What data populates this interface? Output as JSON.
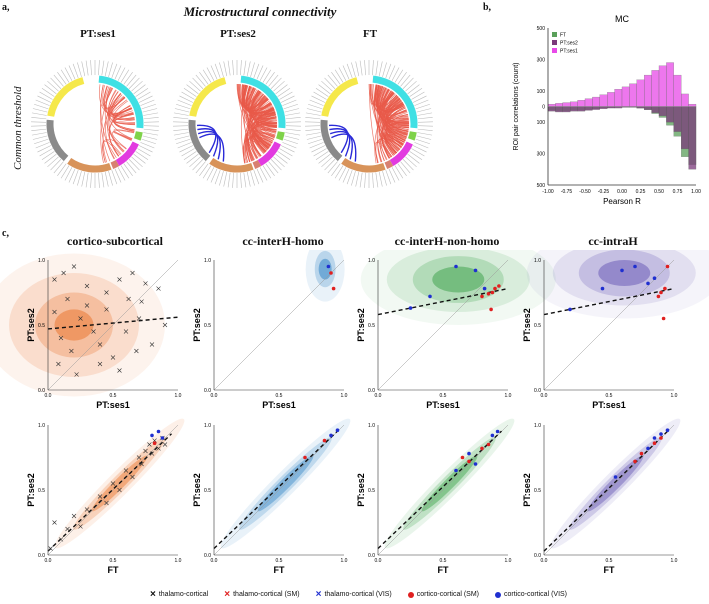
{
  "panel_labels": {
    "a": "a,",
    "b": "b,",
    "c": "c,"
  },
  "section_a": {
    "title": "Microstructural connectivity",
    "side_label": "Common threshold",
    "chords": [
      {
        "title": "PT:ses1",
        "blue_edges": 0,
        "red_edges": 45
      },
      {
        "title": "PT:ses2",
        "blue_edges": 4,
        "red_edges": 140
      },
      {
        "title": "FT",
        "blue_edges": 4,
        "red_edges": 130
      }
    ],
    "module_colors": [
      "#f5e84a",
      "#3fe0e4",
      "#7fd24a",
      "#e23ae0",
      "#d8935a",
      "#8a8a8a",
      "#d88070"
    ]
  },
  "section_c": {
    "row_titles": [
      "cortico-subcortical",
      "cc-interH-homo",
      "cc-interH-non-homo",
      "cc-intraH"
    ],
    "panel_colors": [
      "#e8681a",
      "#2a7fc4",
      "#2a9a3a",
      "#5a4ab0"
    ],
    "top_xlabel": "PT:ses1",
    "bottom_xlabel": "FT",
    "ylabel": "PT:ses2",
    "ticks": [
      "0.0",
      "0.5",
      "1.0"
    ]
  },
  "legend": {
    "items": [
      {
        "label": "thalamo-cortical",
        "marker": "x",
        "color": "#111111"
      },
      {
        "label": "thalamo-cortical (SM)",
        "marker": "x",
        "color": "#e02020"
      },
      {
        "label": "thalamo-cortical (VIS)",
        "marker": "x",
        "color": "#1f2fd0"
      },
      {
        "label": "cortico-cortical (SM)",
        "marker": "o",
        "color": "#e02020"
      },
      {
        "label": "cortico-cortical (VIS)",
        "marker": "o",
        "color": "#1f2fd0"
      }
    ]
  },
  "chart_data": [
    {
      "type": "bar",
      "title": "MC",
      "xlabel": "Pearson R",
      "ylabel": "ROI pair correlations (count)",
      "xlim": [
        -1.0,
        1.0
      ],
      "ylim": [
        -500,
        500
      ],
      "xticks": [
        "-1.00",
        "-0.75",
        "-0.50",
        "-0.25",
        "0.00",
        "0.25",
        "0.50",
        "0.75",
        "1.00"
      ],
      "yticks": [
        "500",
        "400",
        "300",
        "200",
        "100",
        "0",
        "100",
        "200",
        "300",
        "400",
        "500"
      ],
      "legend": [
        "FT",
        "PT:ses2",
        "PT:ses1"
      ],
      "series_colors": {
        "FT": "#5aa05a",
        "PT:ses2": "#7a3a7a",
        "PT:ses1": "#e84ae8"
      },
      "bin_centers": [
        -0.95,
        -0.85,
        -0.75,
        -0.65,
        -0.55,
        -0.45,
        -0.35,
        -0.25,
        -0.15,
        -0.05,
        0.05,
        0.15,
        0.25,
        0.35,
        0.45,
        0.55,
        0.65,
        0.75,
        0.85,
        0.95
      ],
      "series": [
        {
          "name": "PT:ses1",
          "values": [
            15,
            20,
            25,
            30,
            40,
            50,
            60,
            75,
            90,
            110,
            125,
            145,
            170,
            200,
            230,
            260,
            280,
            200,
            80,
            15
          ]
        },
        {
          "name": "PT:ses2",
          "values": [
            -30,
            -35,
            -35,
            -30,
            -30,
            -25,
            -20,
            -15,
            -10,
            -10,
            -5,
            -5,
            -10,
            -20,
            -40,
            -60,
            -100,
            -160,
            -270,
            -400
          ]
        },
        {
          "name": "FT",
          "values": [
            -25,
            -30,
            -30,
            -25,
            -25,
            -20,
            -15,
            -10,
            -8,
            -6,
            -5,
            -5,
            -10,
            -20,
            -45,
            -70,
            -120,
            -190,
            -320,
            -370
          ]
        }
      ]
    },
    {
      "type": "scatter",
      "title": "cortico-subcortical (PT:ses1 vs PT:ses2)",
      "xlabel": "PT:ses1",
      "ylabel": "PT:ses2",
      "xlim": [
        0,
        1
      ],
      "ylim": [
        0,
        1
      ],
      "regression": {
        "intercept": 0.47,
        "slope": 0.09
      },
      "density_center": [
        0.2,
        0.5
      ],
      "points": [
        [
          0.05,
          0.85
        ],
        [
          0.12,
          0.9
        ],
        [
          0.2,
          0.95
        ],
        [
          0.3,
          0.8
        ],
        [
          0.45,
          0.75
        ],
        [
          0.55,
          0.85
        ],
        [
          0.65,
          0.9
        ],
        [
          0.75,
          0.82
        ],
        [
          0.85,
          0.78
        ],
        [
          0.05,
          0.6
        ],
        [
          0.1,
          0.4
        ],
        [
          0.18,
          0.3
        ],
        [
          0.25,
          0.55
        ],
        [
          0.35,
          0.45
        ],
        [
          0.4,
          0.35
        ],
        [
          0.5,
          0.25
        ],
        [
          0.6,
          0.45
        ],
        [
          0.7,
          0.55
        ],
        [
          0.8,
          0.35
        ],
        [
          0.9,
          0.5
        ],
        [
          0.15,
          0.7
        ],
        [
          0.3,
          0.65
        ],
        [
          0.45,
          0.62
        ],
        [
          0.62,
          0.7
        ],
        [
          0.72,
          0.68
        ],
        [
          0.55,
          0.15
        ],
        [
          0.4,
          0.2
        ],
        [
          0.08,
          0.2
        ],
        [
          0.22,
          0.12
        ],
        [
          0.68,
          0.3
        ]
      ]
    },
    {
      "type": "scatter",
      "title": "cc-interH-homo (PT:ses1 vs PT:ses2)",
      "xlabel": "PT:ses1",
      "ylabel": "PT:ses2",
      "xlim": [
        0,
        1
      ],
      "ylim": [
        0,
        1
      ],
      "density_center": [
        0.9,
        0.93
      ],
      "points_sm": [
        [
          0.9,
          0.9
        ],
        [
          0.92,
          0.78
        ]
      ],
      "points_vis": [
        [
          0.88,
          0.95
        ]
      ]
    },
    {
      "type": "scatter",
      "title": "cc-interH-non-homo (PT:ses1 vs PT:ses2)",
      "xlabel": "PT:ses1",
      "ylabel": "PT:ses2",
      "xlim": [
        0,
        1
      ],
      "ylim": [
        0,
        1
      ],
      "regression": {
        "intercept": 0.58,
        "slope": 0.2
      },
      "density_center": [
        0.65,
        0.85
      ],
      "points_sm": [
        [
          0.8,
          0.72
        ],
        [
          0.85,
          0.74
        ],
        [
          0.9,
          0.78
        ],
        [
          0.93,
          0.8
        ],
        [
          0.88,
          0.75
        ],
        [
          0.87,
          0.62
        ]
      ],
      "points_vis": [
        [
          0.25,
          0.63
        ],
        [
          0.4,
          0.72
        ],
        [
          0.6,
          0.95
        ],
        [
          0.75,
          0.92
        ],
        [
          0.82,
          0.78
        ]
      ]
    },
    {
      "type": "scatter",
      "title": "cc-intraH (PT:ses1 vs PT:ses2)",
      "xlabel": "PT:ses1",
      "ylabel": "PT:ses2",
      "xlim": [
        0,
        1
      ],
      "ylim": [
        0,
        1
      ],
      "regression": {
        "intercept": 0.58,
        "slope": 0.2
      },
      "density_center": [
        0.65,
        0.9
      ],
      "points_sm": [
        [
          0.9,
          0.75
        ],
        [
          0.93,
          0.78
        ],
        [
          0.88,
          0.72
        ],
        [
          0.95,
          0.95
        ],
        [
          0.92,
          0.55
        ]
      ],
      "points_vis": [
        [
          0.2,
          0.62
        ],
        [
          0.45,
          0.78
        ],
        [
          0.6,
          0.92
        ],
        [
          0.7,
          0.95
        ],
        [
          0.8,
          0.82
        ],
        [
          0.85,
          0.86
        ]
      ]
    },
    {
      "type": "scatter",
      "title": "cortico-subcortical (FT vs PT:ses2)",
      "xlabel": "FT",
      "ylabel": "PT:ses2",
      "xlim": [
        0,
        1
      ],
      "ylim": [
        0,
        1
      ],
      "regression": {
        "intercept": 0.03,
        "slope": 0.95
      },
      "points": [
        [
          0.02,
          0.05
        ],
        [
          0.05,
          0.25
        ],
        [
          0.1,
          0.12
        ],
        [
          0.15,
          0.2
        ],
        [
          0.2,
          0.3
        ],
        [
          0.25,
          0.22
        ],
        [
          0.3,
          0.35
        ],
        [
          0.4,
          0.45
        ],
        [
          0.45,
          0.4
        ],
        [
          0.5,
          0.55
        ],
        [
          0.55,
          0.5
        ],
        [
          0.6,
          0.65
        ],
        [
          0.65,
          0.6
        ],
        [
          0.7,
          0.75
        ],
        [
          0.72,
          0.7
        ],
        [
          0.75,
          0.8
        ],
        [
          0.78,
          0.85
        ],
        [
          0.8,
          0.78
        ],
        [
          0.82,
          0.88
        ],
        [
          0.85,
          0.82
        ],
        [
          0.88,
          0.9
        ],
        [
          0.9,
          0.85
        ]
      ],
      "points_vis": [
        [
          0.8,
          0.92
        ],
        [
          0.85,
          0.95
        ],
        [
          0.88,
          0.9
        ]
      ],
      "points_sm": [
        [
          0.82,
          0.86
        ]
      ]
    },
    {
      "type": "scatter",
      "title": "cc-interH-homo (FT vs PT:ses2)",
      "xlabel": "FT",
      "ylabel": "PT:ses2",
      "xlim": [
        0,
        1
      ],
      "ylim": [
        0,
        1
      ],
      "regression": {
        "intercept": 0.05,
        "slope": 0.95
      },
      "points_sm": [
        [
          0.7,
          0.75
        ],
        [
          0.85,
          0.88
        ]
      ],
      "points_vis": [
        [
          0.9,
          0.92
        ],
        [
          0.95,
          0.96
        ]
      ]
    },
    {
      "type": "scatter",
      "title": "cc-interH-non-homo (FT vs PT:ses2)",
      "xlabel": "FT",
      "ylabel": "PT:ses2",
      "xlim": [
        0,
        1
      ],
      "ylim": [
        0,
        1
      ],
      "regression": {
        "intercept": 0.05,
        "slope": 0.95
      },
      "points_sm": [
        [
          0.65,
          0.75
        ],
        [
          0.7,
          0.72
        ],
        [
          0.8,
          0.82
        ],
        [
          0.85,
          0.85
        ]
      ],
      "points_vis": [
        [
          0.6,
          0.65
        ],
        [
          0.7,
          0.78
        ],
        [
          0.75,
          0.7
        ],
        [
          0.88,
          0.92
        ],
        [
          0.92,
          0.95
        ]
      ]
    },
    {
      "type": "scatter",
      "title": "cc-intraH (FT vs PT:ses2)",
      "xlabel": "FT",
      "ylabel": "PT:ses2",
      "xlim": [
        0,
        1
      ],
      "ylim": [
        0,
        1
      ],
      "regression": {
        "intercept": 0.03,
        "slope": 0.97
      },
      "points_sm": [
        [
          0.7,
          0.72
        ],
        [
          0.75,
          0.78
        ],
        [
          0.85,
          0.86
        ],
        [
          0.9,
          0.9
        ]
      ],
      "points_vis": [
        [
          0.55,
          0.6
        ],
        [
          0.8,
          0.82
        ],
        [
          0.85,
          0.9
        ],
        [
          0.9,
          0.93
        ],
        [
          0.95,
          0.96
        ]
      ]
    }
  ]
}
